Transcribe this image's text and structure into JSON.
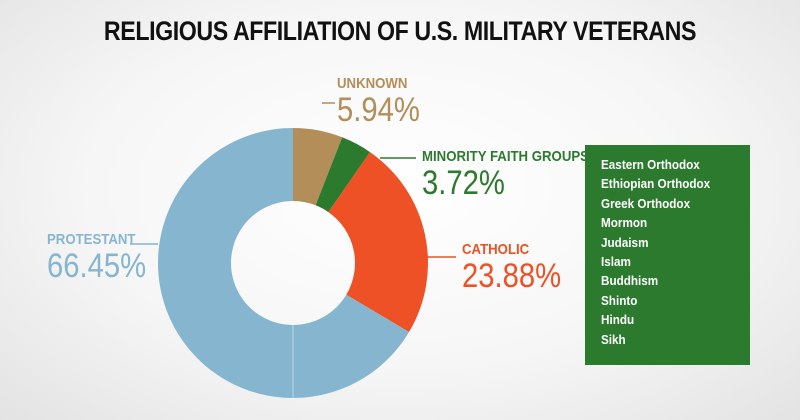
{
  "chart_data": {
    "type": "pie",
    "title": "RELIGIOUS AFFILIATION OF U.S. MILITARY VETERANS",
    "donut": true,
    "slices": [
      {
        "label": "UNKNOWN",
        "value": 5.94,
        "display": "5.94%",
        "color": "#b38e58"
      },
      {
        "label": "MINORITY FAITH GROUPS",
        "value": 3.72,
        "display": "3.72%",
        "color": "#2c7a2e"
      },
      {
        "label": "CATHOLIC",
        "value": 23.88,
        "display": "23.88%",
        "color": "#ee5126"
      },
      {
        "label": "PROTESTANT",
        "value": 66.45,
        "display": "66.45%",
        "color": "#86b6cf"
      }
    ],
    "minority_faith_groups": [
      "Eastern Orthodox",
      "Ethiopian Orthodox",
      "Greek Orthodox",
      "Mormon",
      "Judaism",
      "Islam",
      "Buddhism",
      "Shinto",
      "Hindu",
      "Sikh"
    ]
  }
}
